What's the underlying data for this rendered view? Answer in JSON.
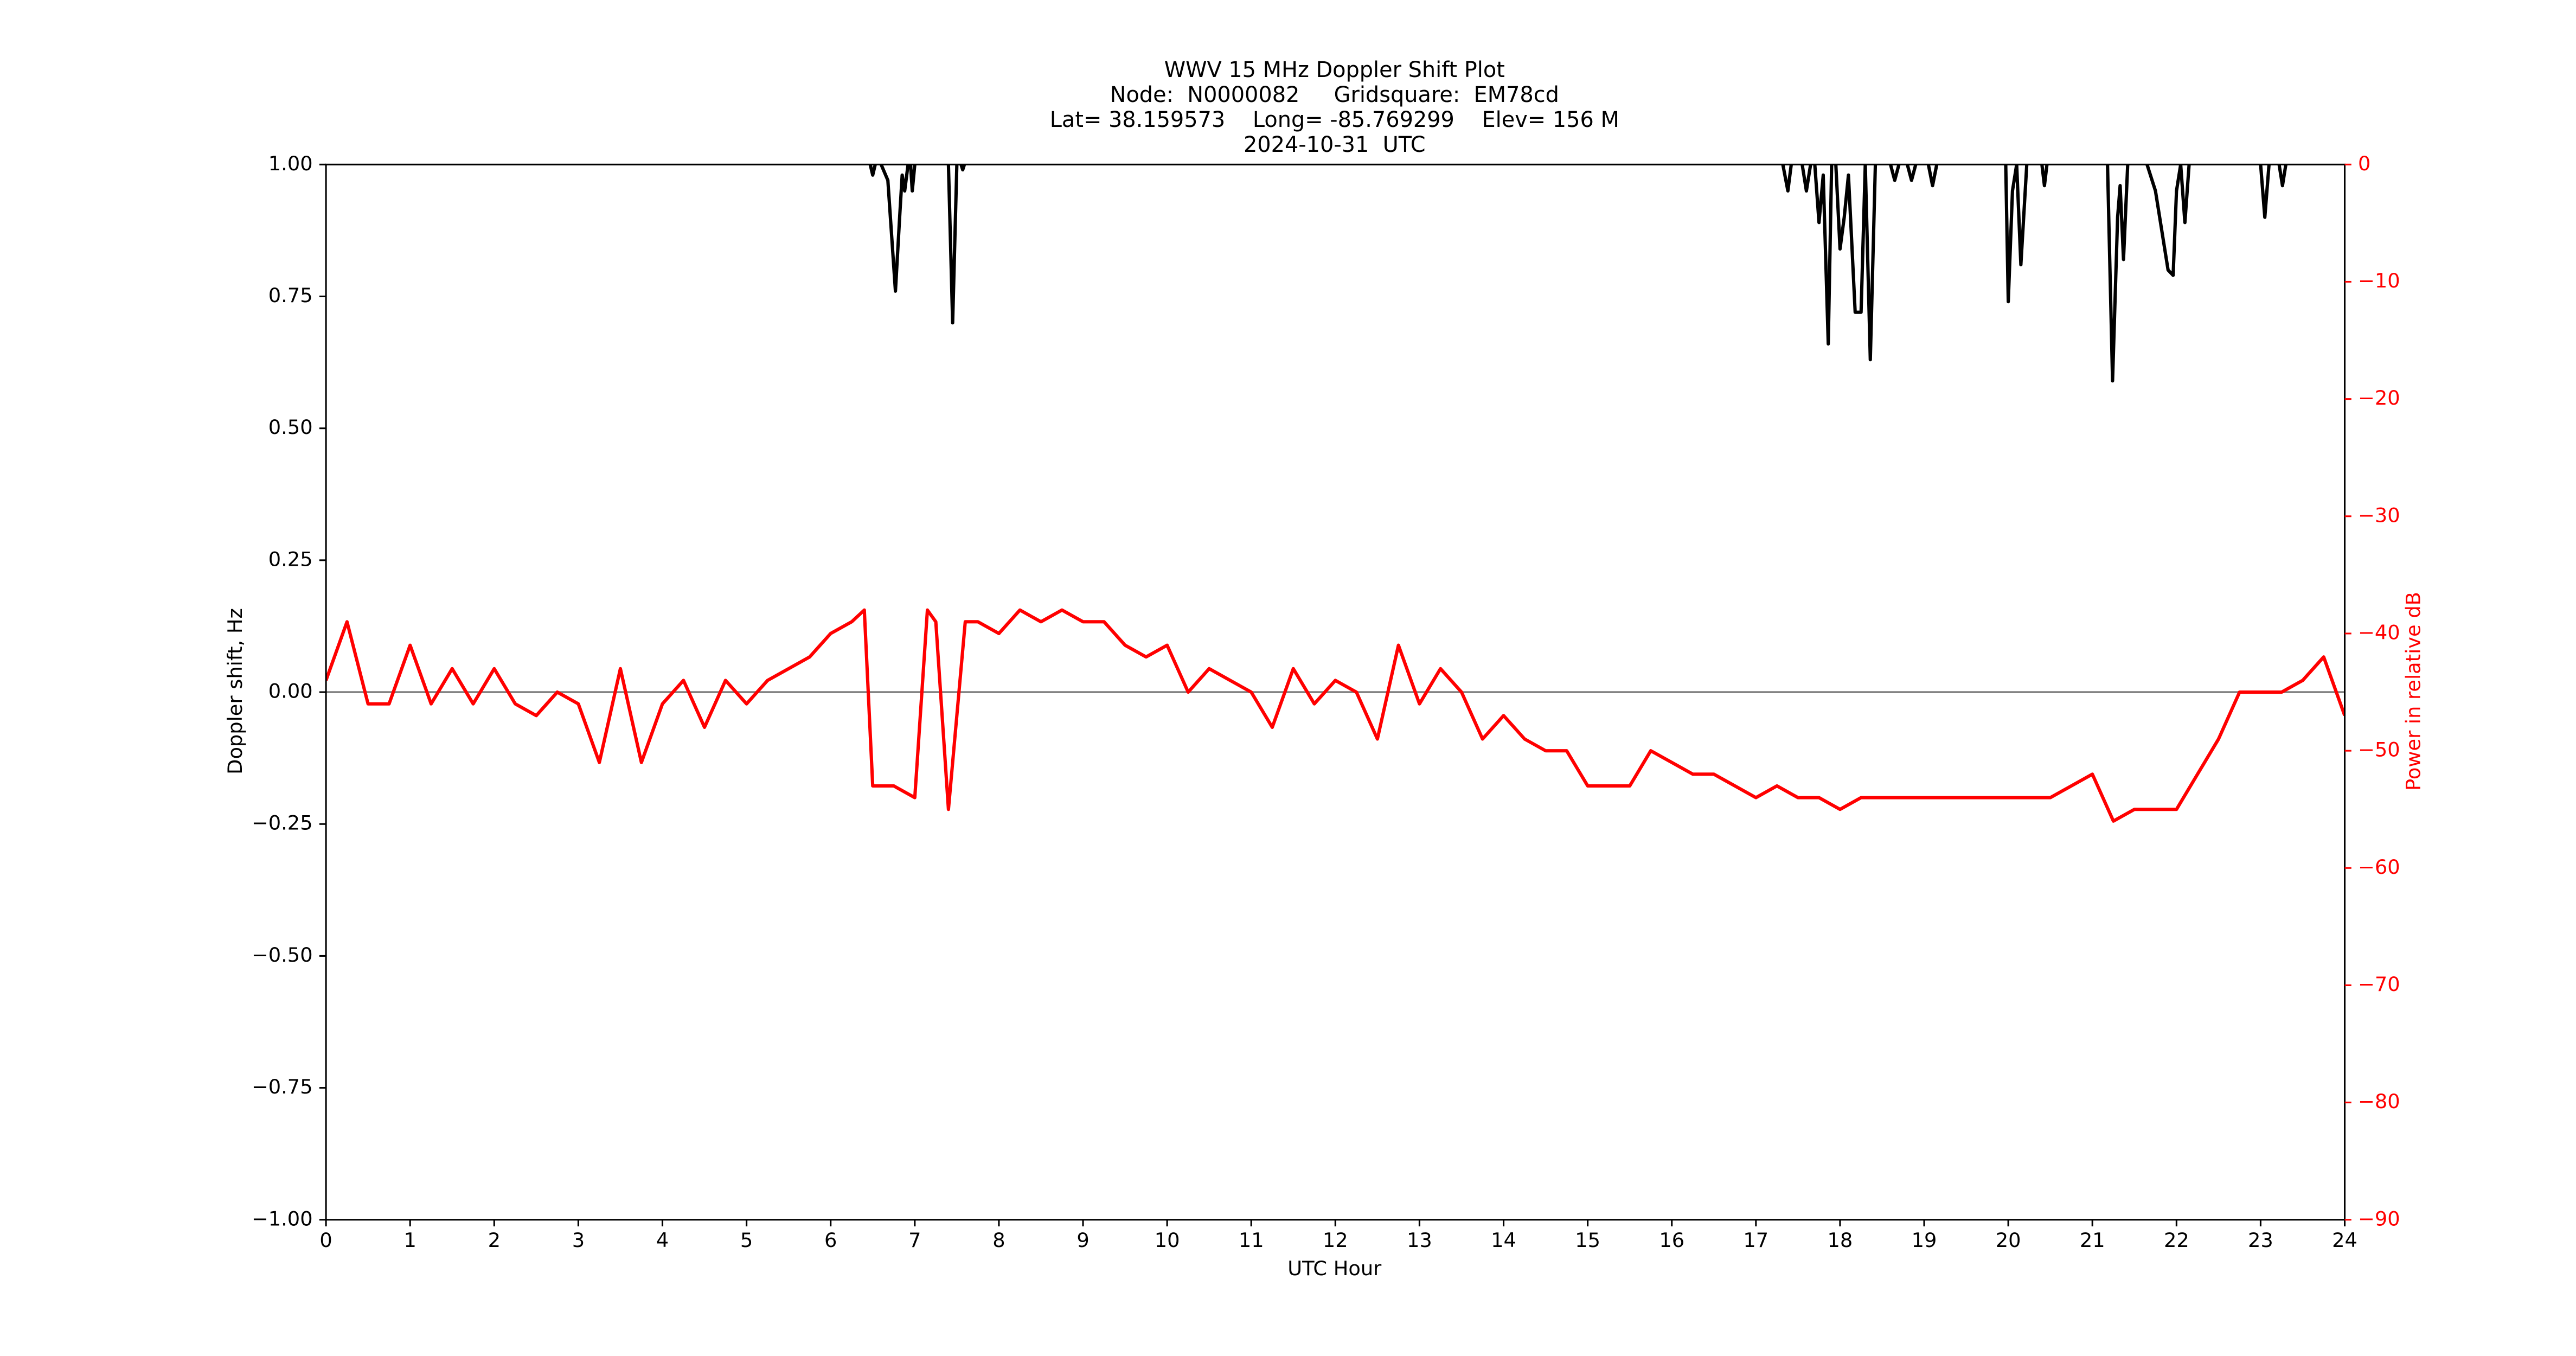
{
  "chart_data": {
    "type": "line",
    "title": [
      "WWV 15 MHz Doppler Shift Plot",
      "Node:  N0000082     Gridsquare:  EM78cd",
      "Lat= 38.159573    Long= -85.769299    Elev= 156 M",
      "2024-10-31  UTC"
    ],
    "x_label": "UTC Hour",
    "y_label": "Doppler shift, Hz",
    "y2_label": "Power in relative dB",
    "xlim": [
      0,
      24
    ],
    "xticks": [
      0,
      1,
      2,
      3,
      4,
      5,
      6,
      7,
      8,
      9,
      10,
      11,
      12,
      13,
      14,
      15,
      16,
      17,
      18,
      19,
      20,
      21,
      22,
      23,
      24
    ],
    "ylim": [
      -1,
      1
    ],
    "yticks": [
      {
        "value": -1,
        "label": "−1.00"
      },
      {
        "value": -0.75,
        "label": "−0.75"
      },
      {
        "value": -0.5,
        "label": "−0.50"
      },
      {
        "value": -0.25,
        "label": "−0.25"
      },
      {
        "value": 0,
        "label": "0.00"
      },
      {
        "value": 0.25,
        "label": "0.25"
      },
      {
        "value": 0.5,
        "label": "0.50"
      },
      {
        "value": 0.75,
        "label": "0.75"
      },
      {
        "value": 1,
        "label": "1.00"
      }
    ],
    "y2lim": [
      -90,
      0
    ],
    "y2ticks": [
      {
        "value": -90,
        "label": "−90"
      },
      {
        "value": -80,
        "label": "−80"
      },
      {
        "value": -70,
        "label": "−70"
      },
      {
        "value": -60,
        "label": "−60"
      },
      {
        "value": -50,
        "label": "−50"
      },
      {
        "value": -40,
        "label": "−40"
      },
      {
        "value": -30,
        "label": "−30"
      },
      {
        "value": -20,
        "label": "−20"
      },
      {
        "value": -10,
        "label": "−10"
      },
      0
    ],
    "hline": 0,
    "hline_color": "#808080",
    "y2_color": "#ff0000",
    "series": [
      {
        "name": "Doppler shift",
        "color": "#000000",
        "axis": "y",
        "x": [
          6.47,
          6.5,
          6.53,
          null,
          6.6,
          6.68,
          6.77,
          6.82,
          6.85,
          6.88,
          6.92,
          null,
          6.95,
          6.97,
          7.0,
          null,
          7.4,
          7.45,
          7.5,
          null,
          7.55,
          7.57,
          7.59,
          null,
          17.32,
          17.38,
          17.42,
          null,
          17.55,
          17.6,
          17.65,
          null,
          17.7,
          17.75,
          17.8,
          17.86,
          17.9,
          null,
          17.95,
          18.0,
          18.05,
          18.1,
          18.18,
          18.25,
          18.3,
          null,
          18.3,
          18.36,
          18.42,
          null,
          18.6,
          18.65,
          18.7,
          null,
          18.8,
          18.85,
          18.9,
          null,
          19.05,
          19.1,
          19.15,
          null,
          19.97,
          20.0,
          20.05,
          20.1,
          20.15,
          20.22,
          null,
          20.4,
          20.43,
          20.46,
          null,
          21.18,
          21.24,
          21.3,
          21.33,
          21.37,
          21.42,
          null,
          21.65,
          21.75,
          21.9,
          21.96,
          22.0,
          22.05,
          22.1,
          22.15,
          null,
          23.0,
          23.05,
          23.1,
          null,
          23.22,
          23.26,
          23.3
        ],
        "values": [
          1.0,
          0.98,
          1.0,
          null,
          1.0,
          0.97,
          0.76,
          0.9,
          0.98,
          0.95,
          1.0,
          null,
          1.0,
          0.95,
          1.0,
          null,
          1.0,
          0.7,
          1.0,
          null,
          1.0,
          0.99,
          1.0,
          null,
          1.0,
          0.95,
          1.0,
          null,
          1.0,
          0.95,
          1.0,
          null,
          1.0,
          0.89,
          0.98,
          0.66,
          1.0,
          null,
          1.0,
          0.84,
          0.9,
          0.98,
          0.72,
          0.72,
          1.0,
          null,
          1.0,
          0.63,
          1.0,
          null,
          1.0,
          0.97,
          1.0,
          null,
          1.0,
          0.97,
          1.0,
          null,
          1.0,
          0.96,
          1.0,
          null,
          1.0,
          0.74,
          0.95,
          1.0,
          0.81,
          1.0,
          null,
          1.0,
          0.96,
          1.0,
          null,
          1.0,
          0.59,
          0.9,
          0.96,
          0.82,
          1.0,
          null,
          1.0,
          0.95,
          0.8,
          0.79,
          0.95,
          1.0,
          0.89,
          1.0,
          null,
          1.0,
          0.9,
          1.0,
          null,
          1.0,
          0.96,
          1.0
        ]
      },
      {
        "name": "Power",
        "color": "#ff0000",
        "axis": "y2",
        "x": [
          0,
          0.25,
          0.5,
          0.75,
          1,
          1.25,
          1.5,
          1.75,
          2,
          2.25,
          2.5,
          2.75,
          3,
          3.25,
          3.5,
          3.75,
          4,
          4.25,
          4.5,
          4.75,
          5,
          5.25,
          5.5,
          5.75,
          6,
          6.25,
          6.4,
          6.5,
          6.75,
          7,
          7.15,
          7.25,
          7.4,
          7.6,
          7.75,
          8,
          8.25,
          8.5,
          8.75,
          9,
          9.25,
          9.5,
          9.75,
          10,
          10.25,
          10.5,
          10.75,
          11,
          11.25,
          11.5,
          11.75,
          12,
          12.25,
          12.5,
          12.75,
          13,
          13.25,
          13.5,
          13.75,
          14,
          14.25,
          14.5,
          14.75,
          15,
          15.25,
          15.5,
          15.75,
          16,
          16.25,
          16.5,
          16.75,
          17,
          17.25,
          17.5,
          17.75,
          18,
          18.25,
          18.5,
          18.75,
          19,
          19.25,
          19.5,
          19.75,
          20,
          20.25,
          20.5,
          20.75,
          21,
          21.25,
          21.5,
          21.75,
          22,
          22.25,
          22.5,
          22.75,
          23,
          23.25,
          23.5,
          23.75,
          24
        ],
        "values": [
          -44,
          -39,
          -46,
          -46,
          -41,
          -46,
          -43,
          -46,
          -43,
          -46,
          -47,
          -45,
          -46,
          -51,
          -43,
          -51,
          -46,
          -44,
          -48,
          -44,
          -46,
          -44,
          -43,
          -42,
          -40,
          -39,
          -38,
          -53,
          -53,
          -54,
          -38,
          -39,
          -55,
          -39,
          -39,
          -40,
          -38,
          -39,
          -38,
          -39,
          -39,
          -41,
          -42,
          -41,
          -45,
          -43,
          -44,
          -45,
          -48,
          -43,
          -46,
          -44,
          -45,
          -49,
          -41,
          -46,
          -43,
          -45,
          -49,
          -47,
          -49,
          -50,
          -50,
          -53,
          -53,
          -53,
          -50,
          -51,
          -52,
          -52,
          -53,
          -54,
          -53,
          -54,
          -54,
          -55,
          -54,
          -54,
          -54,
          -54,
          -54,
          -54,
          -54,
          -54,
          -54,
          -54,
          -53,
          -52,
          -56,
          -55,
          -55,
          -55,
          -52,
          -49,
          -45,
          -45,
          -45,
          -44,
          -42,
          -47
        ]
      }
    ]
  }
}
